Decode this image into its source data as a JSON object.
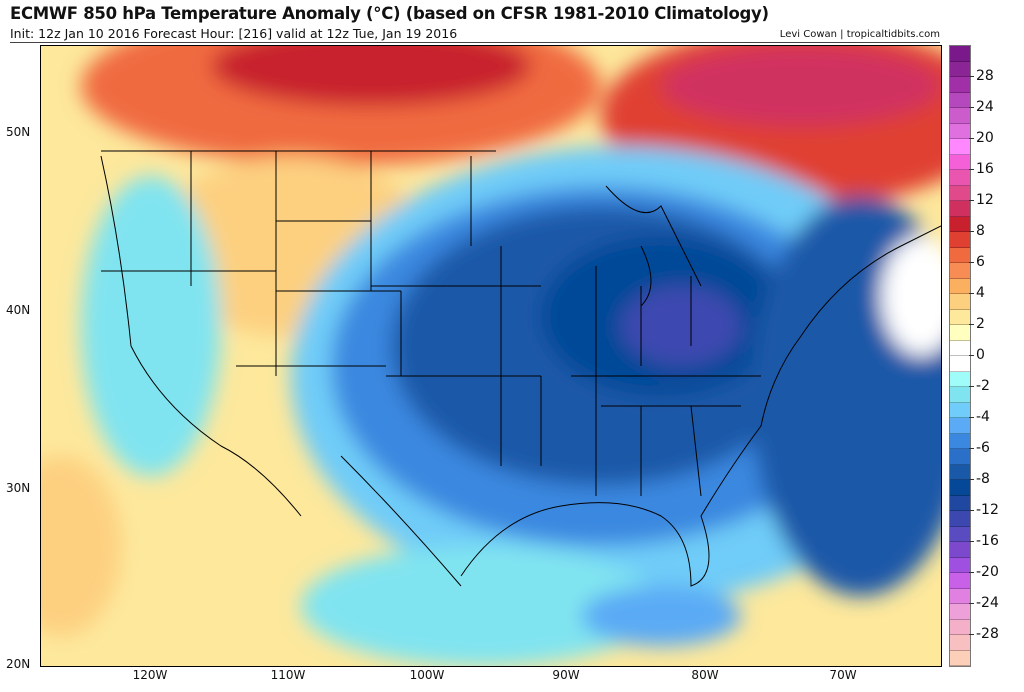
{
  "header": {
    "title": "ECMWF 850 hPa Temperature Anomaly (°C) (based on CFSR 1981-2010 Climatology)",
    "subtitle": "Init: 12z Jan 10 2016   Forecast Hour: [216]   valid at 12z Tue, Jan 19 2016",
    "credit": "Levi Cowan | tropicaltidbits.com"
  },
  "axes": {
    "lat_labels": [
      "50N",
      "40N",
      "30N",
      "20N"
    ],
    "lon_labels": [
      "120W",
      "110W",
      "100W",
      "90W",
      "80W",
      "70W"
    ]
  },
  "colorbar": {
    "labels": [
      "28",
      "24",
      "20",
      "16",
      "12",
      "8",
      "6",
      "4",
      "2",
      "0",
      "-2",
      "-4",
      "-6",
      "-8",
      "-12",
      "-16",
      "-20",
      "-24",
      "-28"
    ],
    "colors": [
      "#7a1a8a",
      "#8b2596",
      "#a02fa8",
      "#b648bd",
      "#cc5ccc",
      "#e070e0",
      "#ff88ff",
      "#f560d8",
      "#ea55b0",
      "#e04a8a",
      "#d03060",
      "#c8202d",
      "#e04030",
      "#f06a40",
      "#f88c55",
      "#fbb060",
      "#fdd080",
      "#fde89c",
      "#ffffc0",
      "#ffffff",
      "#ffffff",
      "#a0fcf8",
      "#80e4f0",
      "#70ccf8",
      "#5aaaf5",
      "#3a88e0",
      "#2a70c8",
      "#1a58a8",
      "#064898",
      "#2048a0",
      "#3c48b0",
      "#5a4cc0",
      "#7c48cc",
      "#a050e0",
      "#c860e8",
      "#e080e0",
      "#eea0d8",
      "#f4b0c8",
      "#f8c0c0",
      "#fcd0b8"
    ]
  }
}
